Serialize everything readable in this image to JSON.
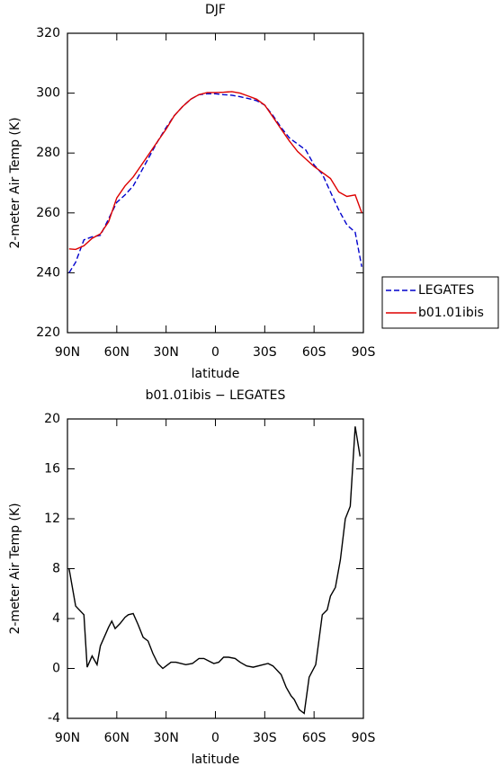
{
  "chart_data": [
    {
      "type": "line",
      "title": "DJF",
      "x_label": "latitude",
      "y_label": "2-meter Air Temp (K)",
      "x": [
        89,
        85,
        80,
        75,
        70,
        65,
        60,
        55,
        50,
        45,
        40,
        35,
        30,
        25,
        20,
        15,
        10,
        5,
        0,
        -5,
        -10,
        -15,
        -20,
        -25,
        -30,
        -35,
        -40,
        -45,
        -50,
        -55,
        -60,
        -65,
        -70,
        -75,
        -80,
        -85,
        -89
      ],
      "series": [
        {
          "name": "LEGATES",
          "color": "#0000cc",
          "line_style": "dashed",
          "values": [
            240,
            243.5,
            251,
            252,
            252.5,
            258,
            263.5,
            266,
            269,
            274,
            279,
            284,
            288.5,
            292.5,
            295.5,
            298,
            299.5,
            299.8,
            299.8,
            299.5,
            299.3,
            298.8,
            298.2,
            297.5,
            296,
            292.5,
            288.5,
            285,
            283,
            281,
            276,
            273,
            267,
            261,
            256,
            253.5,
            242
          ]
        },
        {
          "name": "b01.01ibis",
          "color": "#dd0000",
          "line_style": "solid",
          "values": [
            248,
            247.8,
            249,
            251.5,
            253,
            257,
            265,
            269,
            272,
            276,
            280,
            284,
            288,
            292.5,
            295.5,
            298,
            299.5,
            300.2,
            300.2,
            300.3,
            300.5,
            300,
            299,
            298,
            296,
            292,
            288,
            284,
            280.5,
            278,
            275.5,
            273.5,
            271.5,
            267,
            265.5,
            266,
            260
          ]
        }
      ],
      "xlim": [
        90,
        -90
      ],
      "xticks": [
        {
          "value": 90,
          "label": "90N"
        },
        {
          "value": 60,
          "label": "60N"
        },
        {
          "value": 30,
          "label": "30N"
        },
        0,
        {
          "value": -30,
          "label": "30S"
        },
        {
          "value": -60,
          "label": "60S"
        },
        {
          "value": -90,
          "label": "90S"
        }
      ],
      "ylim": [
        220,
        320
      ],
      "yticks": [
        220,
        240,
        260,
        280,
        300,
        320
      ],
      "legend": "right"
    },
    {
      "type": "line",
      "title": "b01.01ibis − LEGATES",
      "x_label": "latitude",
      "y_label": "2-meter Air Temp (K)",
      "x": [
        89,
        85,
        80,
        78,
        75,
        72,
        70,
        65,
        63,
        61,
        58,
        55,
        53,
        50,
        47,
        44,
        41,
        38,
        35,
        32,
        30,
        27,
        24,
        18,
        14,
        10,
        7,
        4,
        1,
        -2,
        -5,
        -8,
        -12,
        -15,
        -19,
        -23,
        -29,
        -32,
        -35,
        -40,
        -43,
        -46,
        -48,
        -51,
        -54,
        -57,
        -61,
        -65,
        -68,
        -70,
        -73,
        -76,
        -79,
        -82,
        -85,
        -88
      ],
      "series": [
        {
          "name": "b01.01ibis − LEGATES",
          "color": "#000000",
          "line_style": "solid",
          "values": [
            8,
            5,
            4.3,
            0.1,
            1,
            0.3,
            1.8,
            3.3,
            3.8,
            3.2,
            3.6,
            4.1,
            4.3,
            4.4,
            3.5,
            2.5,
            2.2,
            1.2,
            0.4,
            0,
            0.2,
            0.5,
            0.5,
            0.3,
            0.4,
            0.8,
            0.8,
            0.6,
            0.4,
            0.5,
            0.9,
            0.9,
            0.8,
            0.5,
            0.2,
            0.1,
            0.3,
            0.4,
            0.2,
            -0.5,
            -1.5,
            -2.2,
            -2.5,
            -3.3,
            -3.6,
            -0.7,
            0.3,
            4.3,
            4.7,
            5.8,
            6.5,
            8.7,
            12,
            13,
            19.4,
            17
          ]
        }
      ],
      "xlim": [
        90,
        -90
      ],
      "xticks": [
        {
          "value": 90,
          "label": "90N"
        },
        {
          "value": 60,
          "label": "60N"
        },
        {
          "value": 30,
          "label": "30N"
        },
        0,
        {
          "value": -30,
          "label": "30S"
        },
        {
          "value": -60,
          "label": "60S"
        },
        {
          "value": -90,
          "label": "90S"
        }
      ],
      "ylim": [
        -4,
        20
      ],
      "yticks": [
        -4,
        0,
        4,
        8,
        12,
        16,
        20
      ]
    }
  ]
}
